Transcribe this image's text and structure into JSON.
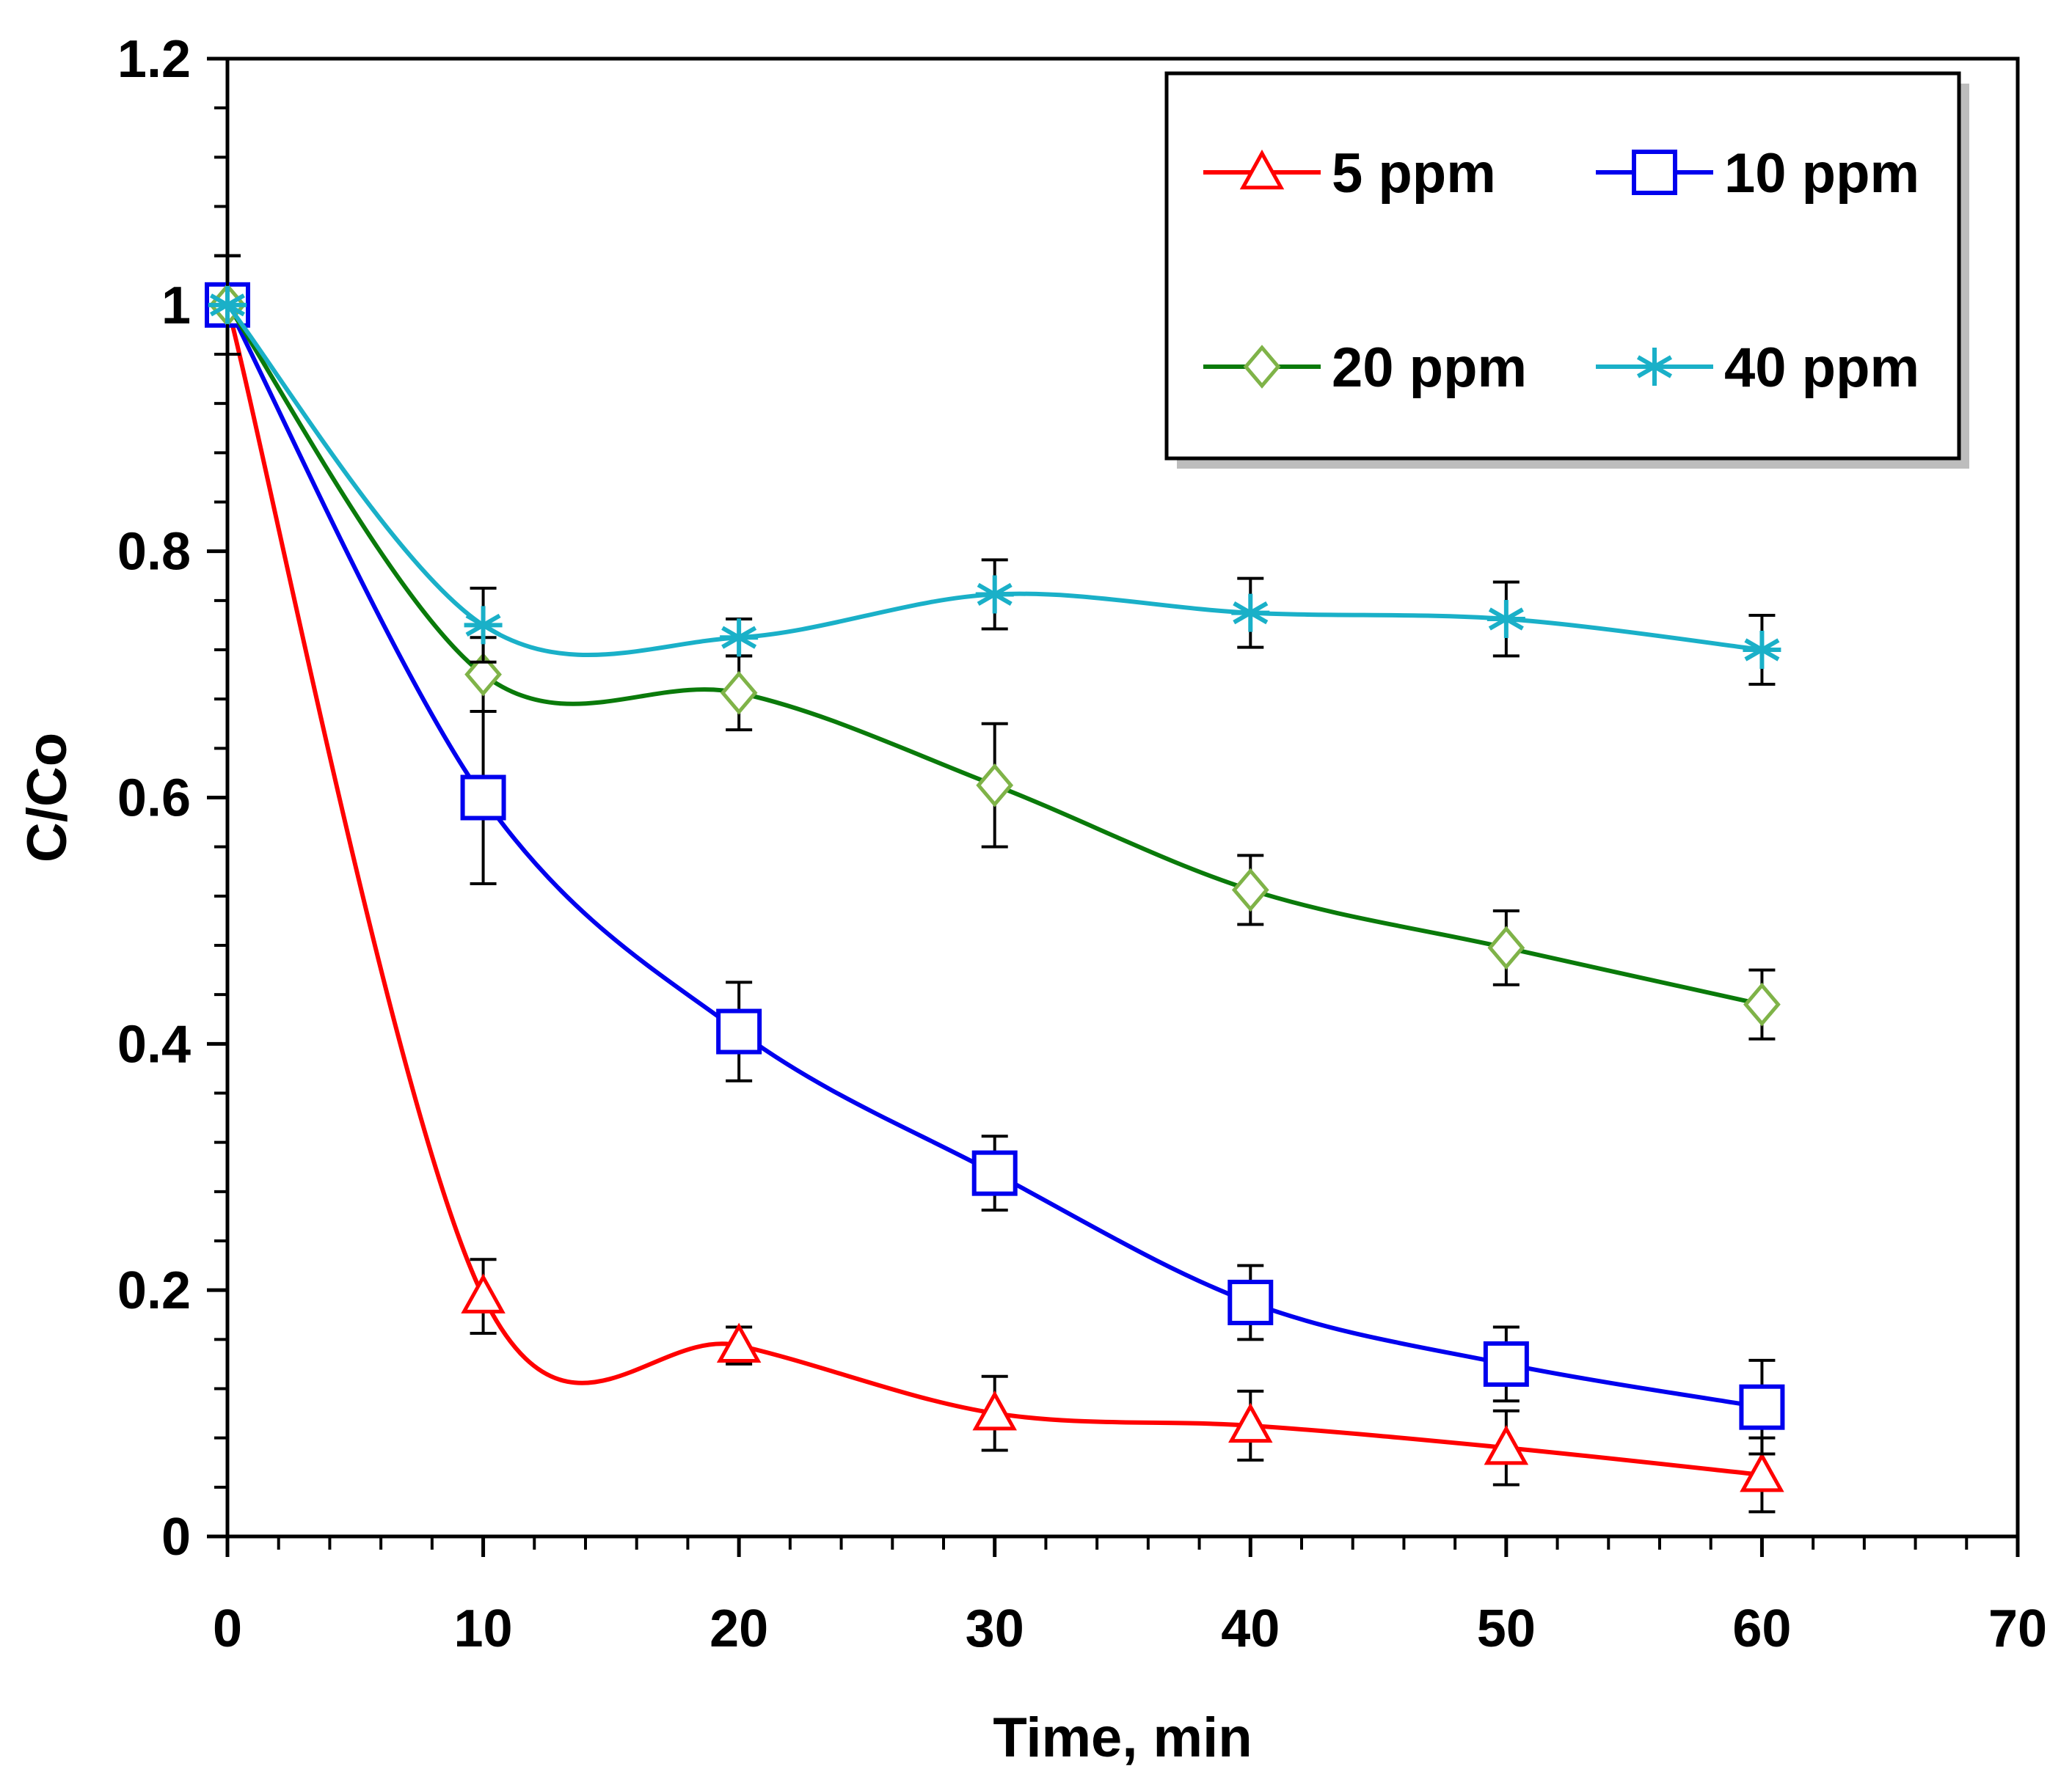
{
  "chart_data": {
    "type": "line",
    "title": "",
    "xlabel": "Time, min",
    "ylabel": "C/Co",
    "xlim": [
      0,
      70
    ],
    "ylim": [
      0,
      1.2
    ],
    "xticks": [
      0,
      10,
      20,
      30,
      40,
      50,
      60,
      70
    ],
    "yticks": [
      0,
      0.2,
      0.4,
      0.6,
      0.8,
      1,
      1.2
    ],
    "xtick_labels": [
      "0",
      "10",
      "20",
      "30",
      "40",
      "50",
      "60",
      "70"
    ],
    "ytick_labels": [
      "0",
      "0.2",
      "0.4",
      "0.6",
      "0.8",
      "1",
      "1.2"
    ],
    "grid": false,
    "legend_position": "top-right",
    "x": [
      0,
      10,
      20,
      30,
      40,
      50,
      60
    ],
    "series": [
      {
        "name": "5 ppm",
        "color": "#ff0000",
        "marker": "triangle-open",
        "values": [
          1.0,
          0.195,
          0.155,
          0.1,
          0.09,
          0.072,
          0.05
        ],
        "errors": [
          0.04,
          0.03,
          0.015,
          0.03,
          0.028,
          0.03,
          0.03
        ]
      },
      {
        "name": "10 ppm",
        "color": "#0000ee",
        "marker": "square-open",
        "values": [
          1.0,
          0.6,
          0.41,
          0.295,
          0.19,
          0.14,
          0.105
        ],
        "errors": [
          0.04,
          0.07,
          0.04,
          0.03,
          0.03,
          0.03,
          0.038
        ]
      },
      {
        "name": "20 ppm",
        "color": "#0a7a0a",
        "marker": "diamond-open",
        "marker_color": "#7fb348",
        "values": [
          1.0,
          0.7,
          0.685,
          0.61,
          0.525,
          0.478,
          0.432
        ],
        "errors": [
          0.04,
          0.03,
          0.03,
          0.05,
          0.028,
          0.03,
          0.028
        ]
      },
      {
        "name": "40 ppm",
        "color": "#1ab0c8",
        "marker": "asterisk",
        "values": [
          1.0,
          0.74,
          0.73,
          0.765,
          0.75,
          0.745,
          0.72
        ],
        "errors": [
          0.04,
          0.03,
          0.015,
          0.028,
          0.028,
          0.03,
          0.028
        ]
      }
    ]
  }
}
